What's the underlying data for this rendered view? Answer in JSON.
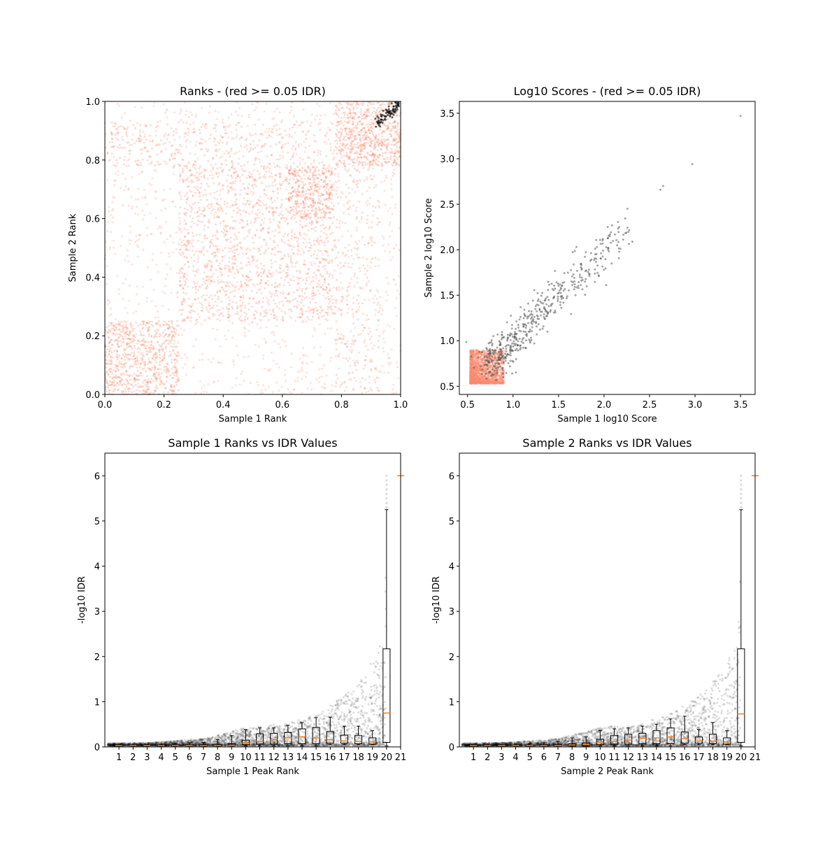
{
  "chart_data": [
    {
      "type": "scatter",
      "title": "Ranks - (red >= 0.05 IDR)",
      "xlabel": "Sample 1 Rank",
      "ylabel": "Sample 2 Rank",
      "xlim": [
        0,
        1
      ],
      "ylim": [
        0,
        1
      ],
      "xticks": [
        "0.0",
        "0.2",
        "0.4",
        "0.6",
        "0.8",
        "1.0"
      ],
      "yticks": [
        "0.0",
        "0.2",
        "0.4",
        "0.6",
        "0.8",
        "1.0"
      ],
      "block_boundaries": [
        0.25,
        0.78
      ],
      "pass_cluster_center": [
        0.96,
        0.96
      ],
      "colors": {
        "fail": "#fa8a6e",
        "pass": "#000000"
      },
      "grid": false
    },
    {
      "type": "scatter",
      "title": "Log10 Scores - (red >= 0.05 IDR)",
      "xlabel": "Sample 1 log10 Score",
      "ylabel": "Sample 2 log10 Score",
      "xlim": [
        0.41,
        3.66
      ],
      "ylim": [
        0.41,
        3.63
      ],
      "xticks": [
        "0.5",
        "1.0",
        "1.5",
        "2.0",
        "2.5",
        "3.0",
        "3.5"
      ],
      "yticks": [
        "0.5",
        "1.0",
        "1.5",
        "2.0",
        "2.5",
        "3.0",
        "3.5"
      ],
      "fail_region": {
        "x": [
          0.53,
          0.9
        ],
        "y": [
          0.53,
          0.9
        ]
      },
      "pass_extreme_points": [
        [
          3.5,
          3.47
        ],
        [
          2.97,
          2.94
        ],
        [
          2.65,
          2.7
        ],
        [
          2.62,
          2.66
        ]
      ],
      "colors": {
        "fail": "#fa8a6e",
        "pass": "#505050"
      },
      "grid": false
    },
    {
      "type": "box",
      "title": "Sample 1 Ranks vs IDR Values",
      "xlabel": "Sample 1 Peak Rank",
      "ylabel": "-log10 IDR",
      "xlim": [
        0,
        21
      ],
      "ylim": [
        0,
        6.5
      ],
      "xticks": [
        "1",
        "2",
        "3",
        "4",
        "5",
        "6",
        "7",
        "8",
        "9",
        "10",
        "11",
        "12",
        "13",
        "14",
        "15",
        "16",
        "17",
        "18",
        "19",
        "20",
        "21"
      ],
      "yticks": [
        "0",
        "1",
        "2",
        "3",
        "4",
        "5",
        "6"
      ],
      "boxes": [
        {
          "med": 0.03,
          "q1": 0.02,
          "q3": 0.04,
          "lo": 0.02,
          "hi": 0.05
        },
        {
          "med": 0.03,
          "q1": 0.02,
          "q3": 0.04,
          "lo": 0.02,
          "hi": 0.05
        },
        {
          "med": 0.03,
          "q1": 0.02,
          "q3": 0.04,
          "lo": 0.02,
          "hi": 0.05
        },
        {
          "med": 0.03,
          "q1": 0.02,
          "q3": 0.04,
          "lo": 0.02,
          "hi": 0.06
        },
        {
          "med": 0.03,
          "q1": 0.02,
          "q3": 0.04,
          "lo": 0.02,
          "hi": 0.07
        },
        {
          "med": 0.03,
          "q1": 0.02,
          "q3": 0.05,
          "lo": 0.02,
          "hi": 0.09
        },
        {
          "med": 0.03,
          "q1": 0.02,
          "q3": 0.05,
          "lo": 0.02,
          "hi": 0.1
        },
        {
          "med": 0.03,
          "q1": 0.02,
          "q3": 0.06,
          "lo": 0.02,
          "hi": 0.16
        },
        {
          "med": 0.03,
          "q1": 0.02,
          "q3": 0.07,
          "lo": 0.02,
          "hi": 0.25
        },
        {
          "med": 0.09,
          "q1": 0.05,
          "q3": 0.15,
          "lo": 0.02,
          "hi": 0.38
        },
        {
          "med": 0.12,
          "q1": 0.06,
          "q3": 0.29,
          "lo": 0.02,
          "hi": 0.42
        },
        {
          "med": 0.16,
          "q1": 0.06,
          "q3": 0.3,
          "lo": 0.02,
          "hi": 0.42
        },
        {
          "med": 0.2,
          "q1": 0.07,
          "q3": 0.32,
          "lo": 0.02,
          "hi": 0.48
        },
        {
          "med": 0.22,
          "q1": 0.07,
          "q3": 0.4,
          "lo": 0.02,
          "hi": 0.54
        },
        {
          "med": 0.2,
          "q1": 0.07,
          "q3": 0.43,
          "lo": 0.02,
          "hi": 0.65
        },
        {
          "med": 0.16,
          "q1": 0.08,
          "q3": 0.34,
          "lo": 0.05,
          "hi": 0.66
        },
        {
          "med": 0.13,
          "q1": 0.08,
          "q3": 0.26,
          "lo": 0.05,
          "hi": 0.46
        },
        {
          "med": 0.12,
          "q1": 0.07,
          "q3": 0.25,
          "lo": 0.05,
          "hi": 0.46
        },
        {
          "med": 0.11,
          "q1": 0.06,
          "q3": 0.2,
          "lo": 0.05,
          "hi": 0.36
        },
        {
          "med": 0.75,
          "q1": 0.1,
          "q3": 2.17,
          "lo": 0.02,
          "hi": 5.25
        },
        {
          "med": 6.0,
          "q1": 6.0,
          "q3": 6.0,
          "lo": 6.0,
          "hi": 6.0
        }
      ],
      "colors": {
        "points": "#000000",
        "median": "#ff7f0e"
      },
      "grid": false
    },
    {
      "type": "box",
      "title": "Sample 2 Ranks vs IDR Values",
      "xlabel": "Sample 2 Peak Rank",
      "ylabel": "-log10 IDR",
      "xlim": [
        0,
        21
      ],
      "ylim": [
        0,
        6.5
      ],
      "xticks": [
        "1",
        "2",
        "3",
        "4",
        "5",
        "6",
        "7",
        "8",
        "9",
        "10",
        "11",
        "12",
        "13",
        "14",
        "15",
        "16",
        "17",
        "18",
        "19",
        "20",
        "21"
      ],
      "yticks": [
        "0",
        "1",
        "2",
        "3",
        "4",
        "5",
        "6"
      ],
      "boxes": [
        {
          "med": 0.03,
          "q1": 0.02,
          "q3": 0.04,
          "lo": 0.02,
          "hi": 0.05
        },
        {
          "med": 0.03,
          "q1": 0.02,
          "q3": 0.04,
          "lo": 0.02,
          "hi": 0.05
        },
        {
          "med": 0.03,
          "q1": 0.02,
          "q3": 0.04,
          "lo": 0.02,
          "hi": 0.05
        },
        {
          "med": 0.03,
          "q1": 0.02,
          "q3": 0.04,
          "lo": 0.02,
          "hi": 0.06
        },
        {
          "med": 0.03,
          "q1": 0.02,
          "q3": 0.04,
          "lo": 0.02,
          "hi": 0.07
        },
        {
          "med": 0.03,
          "q1": 0.02,
          "q3": 0.05,
          "lo": 0.02,
          "hi": 0.09
        },
        {
          "med": 0.03,
          "q1": 0.02,
          "q3": 0.05,
          "lo": 0.02,
          "hi": 0.12
        },
        {
          "med": 0.04,
          "q1": 0.02,
          "q3": 0.07,
          "lo": 0.02,
          "hi": 0.2
        },
        {
          "med": 0.05,
          "q1": 0.02,
          "q3": 0.09,
          "lo": 0.02,
          "hi": 0.22
        },
        {
          "med": 0.1,
          "q1": 0.05,
          "q3": 0.17,
          "lo": 0.02,
          "hi": 0.36
        },
        {
          "med": 0.12,
          "q1": 0.06,
          "q3": 0.25,
          "lo": 0.02,
          "hi": 0.4
        },
        {
          "med": 0.15,
          "q1": 0.06,
          "q3": 0.28,
          "lo": 0.02,
          "hi": 0.42
        },
        {
          "med": 0.19,
          "q1": 0.07,
          "q3": 0.3,
          "lo": 0.02,
          "hi": 0.46
        },
        {
          "med": 0.2,
          "q1": 0.07,
          "q3": 0.36,
          "lo": 0.02,
          "hi": 0.5
        },
        {
          "med": 0.22,
          "q1": 0.07,
          "q3": 0.42,
          "lo": 0.02,
          "hi": 0.62
        },
        {
          "med": 0.18,
          "q1": 0.08,
          "q3": 0.33,
          "lo": 0.05,
          "hi": 0.68
        },
        {
          "med": 0.13,
          "q1": 0.08,
          "q3": 0.22,
          "lo": 0.05,
          "hi": 0.38
        },
        {
          "med": 0.13,
          "q1": 0.07,
          "q3": 0.28,
          "lo": 0.05,
          "hi": 0.54
        },
        {
          "med": 0.11,
          "q1": 0.06,
          "q3": 0.2,
          "lo": 0.05,
          "hi": 0.36
        },
        {
          "med": 0.73,
          "q1": 0.1,
          "q3": 2.17,
          "lo": 0.02,
          "hi": 5.25
        },
        {
          "med": 6.0,
          "q1": 6.0,
          "q3": 6.0,
          "lo": 6.0,
          "hi": 6.0
        }
      ],
      "colors": {
        "points": "#000000",
        "median": "#ff7f0e"
      },
      "grid": false
    }
  ]
}
